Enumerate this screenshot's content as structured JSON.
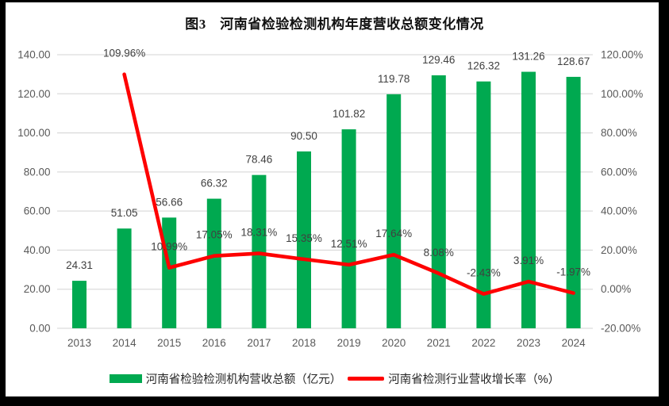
{
  "title": "图3　河南省检验检测机构年度营收总额变化情况",
  "colors": {
    "bar": "#00A950",
    "line": "#FE0000",
    "grid": "#DCDCDC",
    "tick_text": "#595959",
    "data_label_text": "#404040",
    "frame": "#000000",
    "background": "#FFFFFF"
  },
  "chart_data": {
    "type": "bar+line combo",
    "categories": [
      "2013",
      "2014",
      "2015",
      "2016",
      "2017",
      "2018",
      "2019",
      "2020",
      "2021",
      "2022",
      "2023",
      "2024"
    ],
    "series": [
      {
        "name": "河南省检验检测机构营收总额（亿元）",
        "type": "bar",
        "axis": "left",
        "color": "#00A950",
        "values": [
          24.31,
          51.05,
          56.66,
          66.32,
          78.46,
          90.5,
          101.82,
          119.78,
          129.46,
          126.32,
          131.26,
          128.67
        ],
        "labels": [
          "24.31",
          "51.05",
          "56.66",
          "66.32",
          "78.46",
          "90.50",
          "101.82",
          "119.78",
          "129.46",
          "126.32",
          "131.26",
          "128.67"
        ]
      },
      {
        "name": "河南省检测行业营收增长率（%）",
        "type": "line",
        "axis": "right",
        "color": "#FE0000",
        "values": [
          null,
          109.96,
          10.99,
          17.05,
          18.31,
          15.35,
          12.51,
          17.64,
          8.08,
          -2.43,
          3.91,
          -1.97
        ],
        "labels": [
          null,
          "109.96%",
          "10.99%",
          "17.05%",
          "18.31%",
          "15.35%",
          "12.51%",
          "17.64%",
          "8.08%",
          "-2.43%",
          "3.91%",
          "-1.97%"
        ]
      }
    ],
    "left_axis": {
      "min": 0,
      "max": 140,
      "step": 20,
      "tick_labels": [
        "0.00",
        "20.00",
        "40.00",
        "60.00",
        "80.00",
        "100.00",
        "120.00",
        "140.00"
      ]
    },
    "right_axis": {
      "min": -20,
      "max": 120,
      "step": 20,
      "tick_labels": [
        "-20.00%",
        "0.00%",
        "20.00%",
        "40.00%",
        "60.00%",
        "80.00%",
        "100.00%",
        "120.00%"
      ]
    },
    "grid": true,
    "legend_position": "bottom"
  },
  "legend": {
    "items": [
      {
        "label": "河南省检验检测机构营收总额（亿元）",
        "swatch": "bar",
        "color": "#00A950"
      },
      {
        "label": "河南省检测行业营收增长率（%）",
        "swatch": "line",
        "color": "#FE0000"
      }
    ]
  }
}
